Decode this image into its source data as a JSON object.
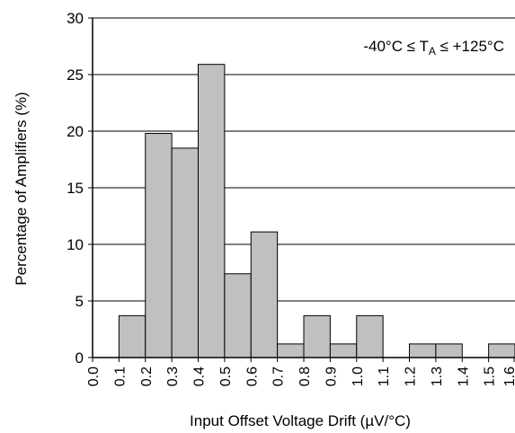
{
  "chart_data": {
    "type": "bar",
    "xlabel": "Input Offset Voltage Drift (µV/°C)",
    "ylabel": "Percentage of Amplifiers (%)",
    "ylim": [
      0,
      30
    ],
    "xlim": [
      0,
      1.6
    ],
    "y_ticks": [
      "0",
      "5",
      "10",
      "15",
      "20",
      "25",
      "30"
    ],
    "x_ticks": [
      "0.0",
      "0.1",
      "0.2",
      "0.3",
      "0.4",
      "0.5",
      "0.6",
      "0.7",
      "0.8",
      "0.9",
      "1.0",
      "1.1",
      "1.2",
      "1.3",
      "1.4",
      "1.5",
      "1.6"
    ],
    "bin_width": 0.1,
    "bins": [
      {
        "start": 0.1,
        "end": 0.2,
        "value": 3.7
      },
      {
        "start": 0.2,
        "end": 0.3,
        "value": 19.8
      },
      {
        "start": 0.3,
        "end": 0.4,
        "value": 18.5
      },
      {
        "start": 0.4,
        "end": 0.5,
        "value": 25.9
      },
      {
        "start": 0.5,
        "end": 0.6,
        "value": 7.4
      },
      {
        "start": 0.6,
        "end": 0.7,
        "value": 11.1
      },
      {
        "start": 0.7,
        "end": 0.8,
        "value": 1.2
      },
      {
        "start": 0.8,
        "end": 0.9,
        "value": 3.7
      },
      {
        "start": 0.9,
        "end": 1.0,
        "value": 1.2
      },
      {
        "start": 1.0,
        "end": 1.1,
        "value": 3.7
      },
      {
        "start": 1.2,
        "end": 1.3,
        "value": 1.2
      },
      {
        "start": 1.3,
        "end": 1.4,
        "value": 1.2
      },
      {
        "start": 1.5,
        "end": 1.6,
        "value": 1.2
      }
    ],
    "grid": "horizontal",
    "bar_color": "#c0c0c0",
    "annotation": {
      "prefix": "-40°C ≤ T",
      "subscript": "A",
      "suffix": " ≤ +125°C"
    }
  }
}
